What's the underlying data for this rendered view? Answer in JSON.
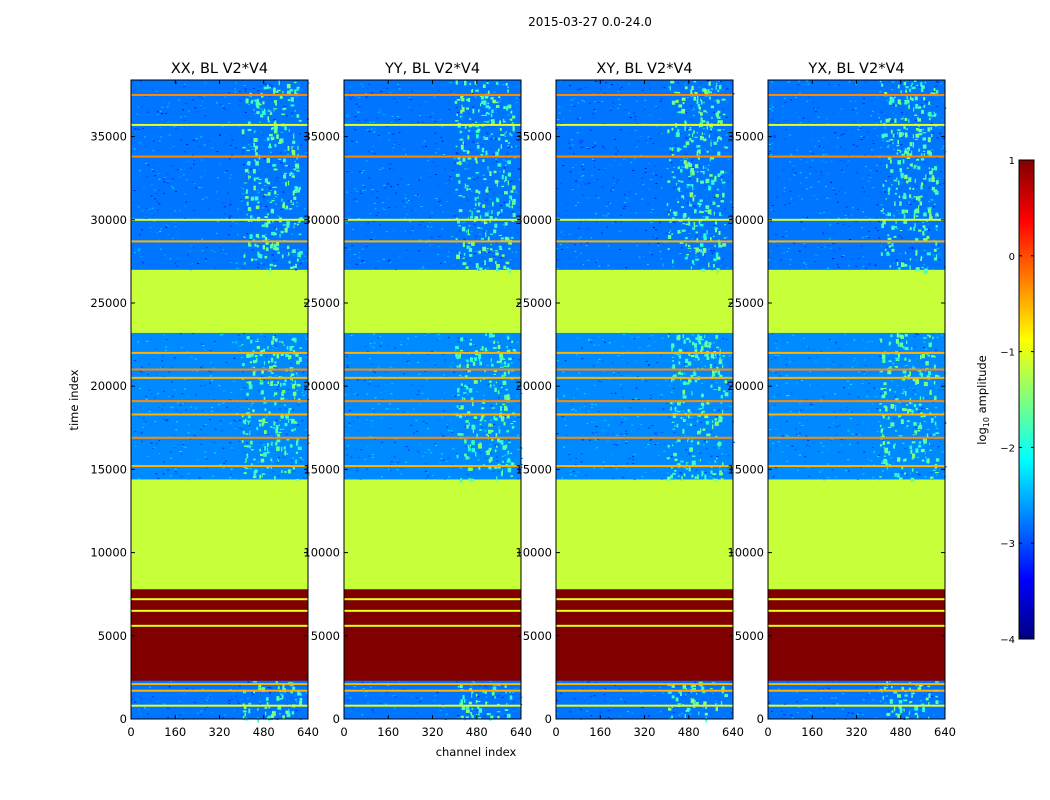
{
  "figure": {
    "suptitle": "2015-03-27 0.0-24.0",
    "xlabel": "channel index",
    "ylabel": "time index"
  },
  "chart_data": {
    "type": "heatmap",
    "title": "2015-03-27 0.0-24.0",
    "xlabel": "channel index",
    "ylabel": "time index",
    "xlim": [
      0,
      640
    ],
    "ylim": [
      0,
      38400
    ],
    "xticks": [
      0,
      160,
      320,
      480,
      640
    ],
    "yticks": [
      0,
      5000,
      10000,
      15000,
      20000,
      25000,
      30000,
      35000
    ],
    "panels": [
      {
        "title": "XX, BL V2*V4",
        "show_ytick_labels": true
      },
      {
        "title": "YY, BL V2*V4",
        "show_ytick_labels": true
      },
      {
        "title": "XY, BL V2*V4",
        "show_ytick_labels": true
      },
      {
        "title": "YX, BL V2*V4",
        "show_ytick_labels": true
      }
    ],
    "colorbar": {
      "label": "log10 amplitude",
      "label_parts": {
        "base": "log",
        "sub": "10",
        "rest": " amplitude"
      },
      "vmin": -4,
      "vmax": 1,
      "ticks": [
        -4,
        -3,
        -2,
        -1,
        0,
        1
      ],
      "tick_labels": [
        "−4",
        "−3",
        "−2",
        "−1",
        "0",
        "1"
      ],
      "colormap": "jet",
      "colors": [
        "#00007f",
        "#0000ff",
        "#007fff",
        "#00ffff",
        "#7fff7f",
        "#ffff00",
        "#ff7f00",
        "#ff0000",
        "#7f0000"
      ]
    },
    "blocks": [
      {
        "t0": 0,
        "t1": 2300,
        "value": -2.8,
        "label": "noise"
      },
      {
        "t0": 2300,
        "t1": 7800,
        "value": 1.0,
        "label": "saturated"
      },
      {
        "t0": 7800,
        "t1": 14400,
        "value": -1.15,
        "label": "flat"
      },
      {
        "t0": 14400,
        "t1": 23200,
        "value": -2.7,
        "label": "noise"
      },
      {
        "t0": 23200,
        "t1": 27000,
        "value": -1.15,
        "label": "flat"
      },
      {
        "t0": 27000,
        "t1": 38400,
        "value": -2.8,
        "label": "noise"
      }
    ],
    "flag_lines": [
      {
        "t": 800,
        "value": -1.0
      },
      {
        "t": 1700,
        "value": -0.5
      },
      {
        "t": 2100,
        "value": -0.5
      },
      {
        "t": 5600,
        "value": -1.0
      },
      {
        "t": 6500,
        "value": -1.0
      },
      {
        "t": 7200,
        "value": -1.0
      },
      {
        "t": 15200,
        "value": -0.5
      },
      {
        "t": 16900,
        "value": -0.3
      },
      {
        "t": 18300,
        "value": -0.5
      },
      {
        "t": 19100,
        "value": -0.3
      },
      {
        "t": 20500,
        "value": -0.5
      },
      {
        "t": 21000,
        "value": -0.3
      },
      {
        "t": 22000,
        "value": -0.5
      },
      {
        "t": 28700,
        "value": -0.5
      },
      {
        "t": 30000,
        "value": -1.0
      },
      {
        "t": 33800,
        "value": -0.3
      },
      {
        "t": 35700,
        "value": -1.0
      },
      {
        "t": 37500,
        "value": -0.3
      }
    ],
    "bright_band": {
      "c0": 400,
      "c1": 610
    }
  }
}
